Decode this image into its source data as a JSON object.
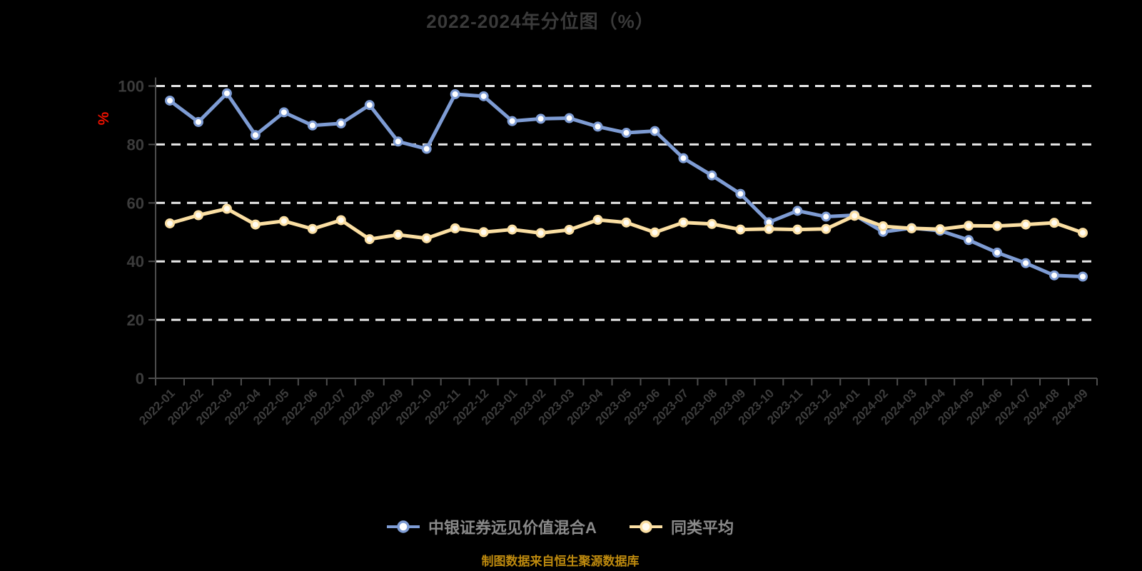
{
  "page": {
    "title": "2022-2024年分位图（%）",
    "footer": "制图数据来自恒生聚源数据库"
  },
  "colors": {
    "background": "#000000",
    "title_text": "#3A3A3A",
    "axis_line": "#4D4D4D",
    "tick_label": "#3C3C3C",
    "gridline": "#E8E8E8",
    "unit_label": "#EE1100",
    "legend_text": "#8A8A8A",
    "footer_text": "#BE8A0E"
  },
  "legend": {
    "items": [
      {
        "name": "中银证券远见价值混合A",
        "color": "#7E9CD4",
        "marker_fill": "#FFFFFF"
      },
      {
        "name": "同类平均",
        "color": "#FBDFA3",
        "marker_fill": "#FFFBF0"
      }
    ]
  },
  "chart_data": {
    "type": "line",
    "title": "2022-2024年分位图（%）",
    "xlabel": "",
    "ylabel": "%",
    "ylim": [
      0,
      100
    ],
    "y_ticks": [
      0,
      20,
      40,
      60,
      80,
      100
    ],
    "grid": "horizontal dashed white lines at 20/40/60/80/100",
    "legend_position": "bottom",
    "categories": [
      "2022-01",
      "2022-02",
      "2022-03",
      "2022-04",
      "2022-05",
      "2022-06",
      "2022-07",
      "2022-08",
      "2022-09",
      "2022-10",
      "2022-11",
      "2022-12",
      "2023-01",
      "2023-02",
      "2023-03",
      "2023-04",
      "2023-05",
      "2023-06",
      "2023-07",
      "2023-08",
      "2023-09",
      "2023-10",
      "2023-11",
      "2023-12",
      "2024-01",
      "2024-02",
      "2024-03",
      "2024-04",
      "2024-05",
      "2024-06",
      "2024-07",
      "2024-08",
      "2024-09"
    ],
    "series": [
      {
        "name": "中银证券远见价值混合A",
        "color": "#7E9CD4",
        "marker_fill": "#FFFFFF",
        "values": [
          95,
          87.7,
          97.5,
          83.2,
          91,
          86.5,
          87.2,
          93.5,
          81,
          78.5,
          97.2,
          96.5,
          88,
          88.8,
          89,
          86.1,
          84,
          84.6,
          75.3,
          69.4,
          63.1,
          53.4,
          57.3,
          55.3,
          55.8,
          50.1,
          51.4,
          50.5,
          47.3,
          43,
          39.4,
          35.2,
          34.8
        ]
      },
      {
        "name": "同类平均",
        "color": "#FBDFA3",
        "marker_fill": "#FFFBF0",
        "values": [
          53,
          55.8,
          58,
          52.6,
          53.8,
          51.1,
          54.1,
          47.6,
          49.1,
          47.9,
          51.3,
          50,
          50.9,
          49.7,
          50.8,
          54.2,
          53.3,
          49.9,
          53.3,
          52.8,
          50.9,
          51.1,
          50.9,
          51.1,
          55.6,
          52,
          51.3,
          51,
          52.2,
          52.1,
          52.6,
          53.2,
          49.8
        ]
      }
    ]
  }
}
